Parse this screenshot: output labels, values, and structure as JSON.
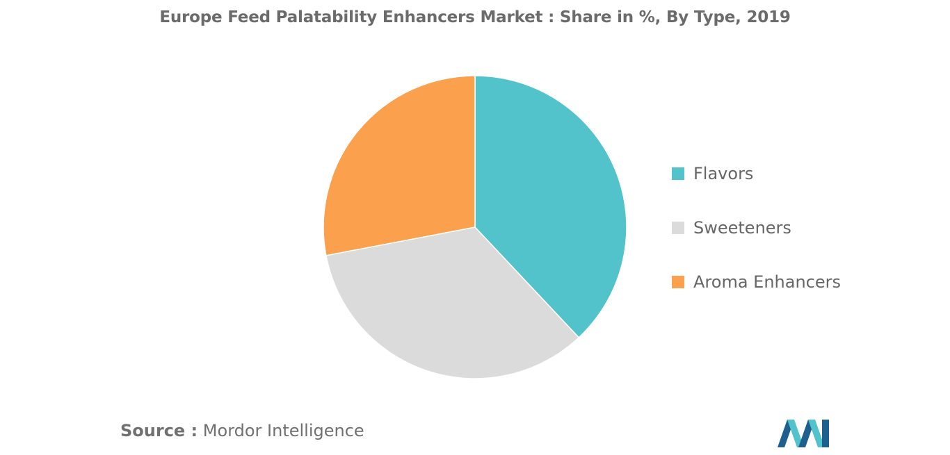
{
  "chart_data": {
    "type": "pie",
    "title": "Europe Feed Palatability Enhancers Market : Share in %, By Type, 2019",
    "categories": [
      "Flavors",
      "Sweeteners",
      "Aroma Enhancers"
    ],
    "values": [
      38,
      34,
      28
    ],
    "colors": [
      "#52C3CA",
      "#DBDBDB",
      "#FBA04C"
    ],
    "start_angle_deg": 0,
    "direction": "clockwise",
    "legend_position": "right"
  },
  "source": {
    "prefix": "Source :",
    "text": "Mordor Intelligence"
  },
  "logo": {
    "icon": "mordor-intelligence-logo",
    "colors": [
      "#1F5F8E",
      "#52C3CA"
    ]
  }
}
